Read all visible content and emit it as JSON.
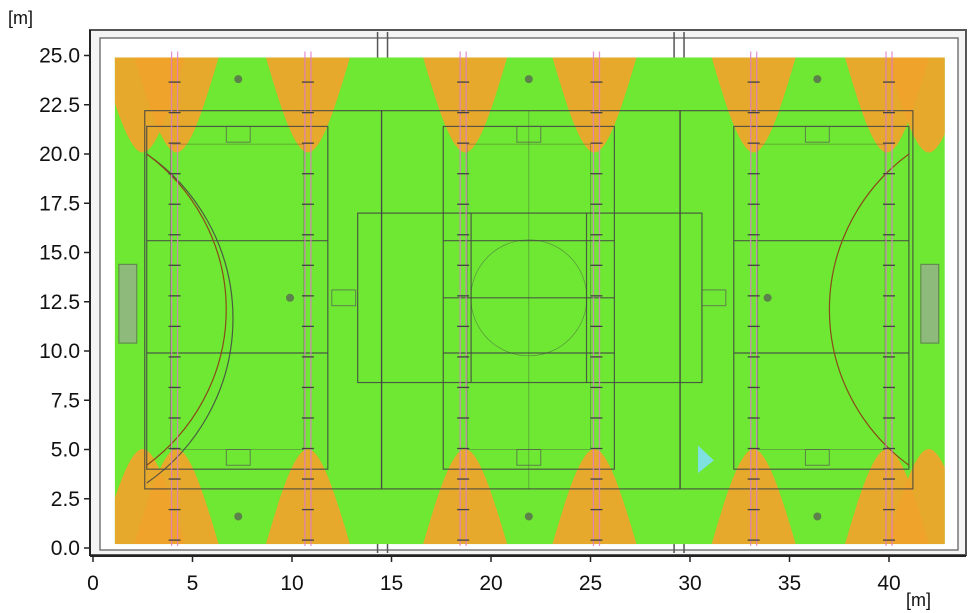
{
  "chart_data": {
    "type": "heatmap",
    "x_unit": "[m]",
    "y_unit": "[m]",
    "x_ticks": [
      0,
      5,
      10,
      15,
      20,
      25,
      30,
      35,
      40
    ],
    "x_tick_labels": [
      "0",
      "5",
      "10",
      "15",
      "20",
      "25",
      "30",
      "35",
      "40"
    ],
    "y_ticks": [
      0.0,
      2.5,
      5.0,
      7.5,
      10.0,
      12.5,
      15.0,
      17.5,
      20.0,
      22.5,
      25.0
    ],
    "y_tick_labels": [
      "0.0",
      "2.5",
      "5.0",
      "7.5",
      "10.0",
      "12.5",
      "15.0",
      "17.5",
      "20.0",
      "22.5",
      "25.0"
    ],
    "xlim": [
      0,
      43.5
    ],
    "ylim": [
      0,
      25.5
    ],
    "colors": {
      "base": "#6ee833",
      "hotspot": "#f0a32a",
      "marker": "#7fe0e0",
      "lines": "#444444"
    },
    "luminaire_rows_x": [
      4.1,
      10.8,
      18.6,
      25.3,
      33.2,
      40.0
    ],
    "hotspots": [
      {
        "x": 2.5,
        "top": true
      },
      {
        "x": 4.2,
        "top": true
      },
      {
        "x": 10.8,
        "top": true
      },
      {
        "x": 18.7,
        "top": true
      },
      {
        "x": 25.2,
        "top": true
      },
      {
        "x": 33.2,
        "top": true
      },
      {
        "x": 39.9,
        "top": true
      },
      {
        "x": 42.0,
        "top": true
      },
      {
        "x": 2.5,
        "top": false
      },
      {
        "x": 4.2,
        "top": false
      },
      {
        "x": 10.8,
        "top": false
      },
      {
        "x": 18.7,
        "top": false
      },
      {
        "x": 25.2,
        "top": false
      },
      {
        "x": 33.2,
        "top": false
      },
      {
        "x": 39.9,
        "top": false
      },
      {
        "x": 42.0,
        "top": false
      }
    ]
  }
}
